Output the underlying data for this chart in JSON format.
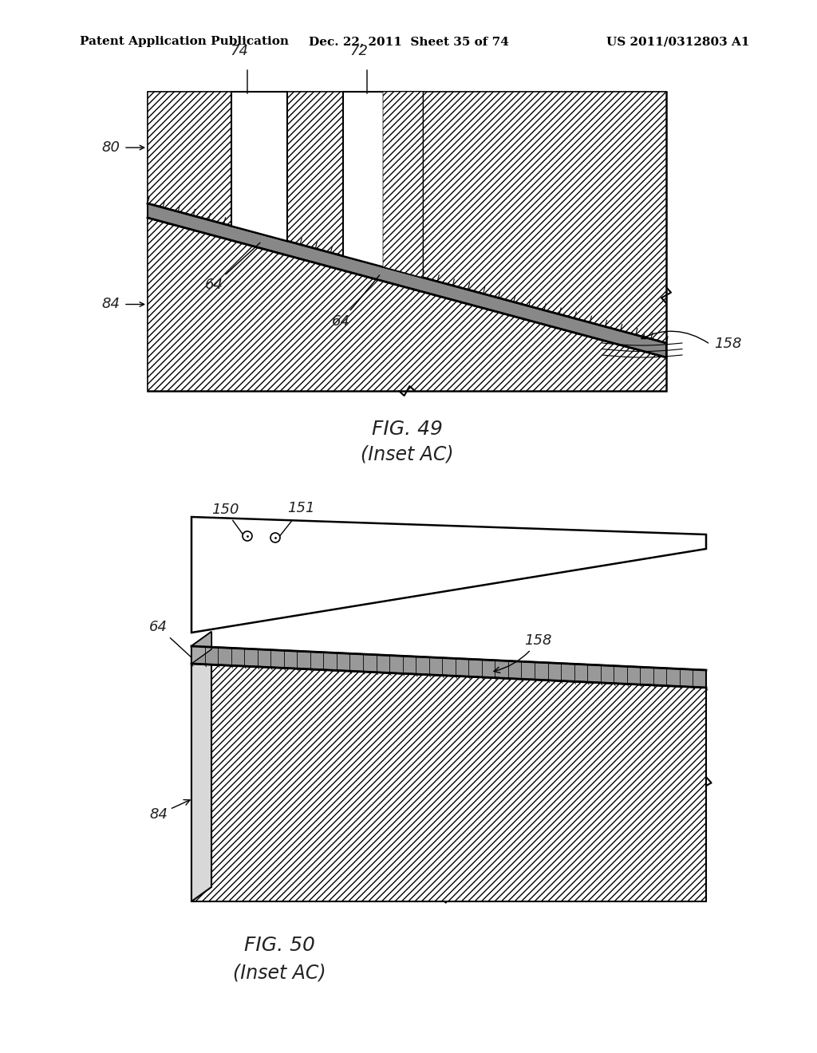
{
  "header_left": "Patent Application Publication",
  "header_mid": "Dec. 22, 2011  Sheet 35 of 74",
  "header_right": "US 2011/0312803 A1",
  "fig49_title": "FIG. 49",
  "fig49_subtitle": "(Inset AC)",
  "fig50_title": "FIG. 50",
  "fig50_subtitle": "(Inset AC)",
  "bg_color": "#ffffff"
}
